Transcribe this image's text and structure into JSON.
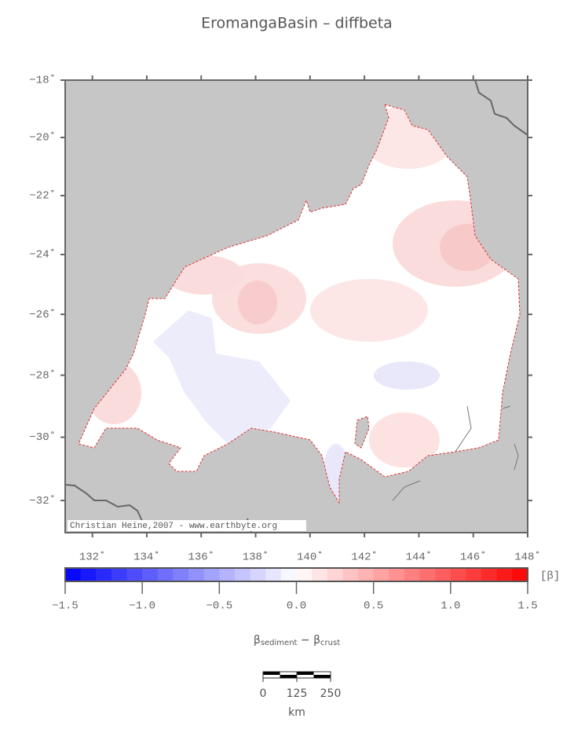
{
  "title": "EromangaBasin – diffbeta",
  "map": {
    "lon_lim": [
      131,
      148
    ],
    "lat_lim": [
      -33,
      -18
    ],
    "lat_ticks": [
      {
        "value": -18,
        "label": "−18˚"
      },
      {
        "value": -20,
        "label": "−20˚"
      },
      {
        "value": -22,
        "label": "−22˚"
      },
      {
        "value": -24,
        "label": "−24˚"
      },
      {
        "value": -26,
        "label": "−26˚"
      },
      {
        "value": -28,
        "label": "−28˚"
      },
      {
        "value": -30,
        "label": "−30˚"
      },
      {
        "value": -32,
        "label": "−32˚"
      }
    ],
    "lon_ticks": [
      {
        "value": 132,
        "label": "132˚"
      },
      {
        "value": 134,
        "label": "134˚"
      },
      {
        "value": 136,
        "label": "136˚"
      },
      {
        "value": 138,
        "label": "138˚"
      },
      {
        "value": 140,
        "label": "140˚"
      },
      {
        "value": 142,
        "label": "142˚"
      },
      {
        "value": 144,
        "label": "144˚"
      },
      {
        "value": 146,
        "label": "146˚"
      },
      {
        "value": 148,
        "label": "148˚"
      }
    ],
    "credit": "Christian Heine,2007 - www.earthbyte.org"
  },
  "colorbar": {
    "lim": [
      -1.5,
      1.5
    ],
    "unit": "[β]",
    "ticks": [
      {
        "value": -1.5,
        "label": "−1.5"
      },
      {
        "value": -1,
        "label": "−1.0"
      },
      {
        "value": -0.5,
        "label": "−0.5"
      },
      {
        "value": 0,
        "label": "0.0"
      },
      0.5,
      {
        "value": 1,
        "label": "1.0"
      },
      1.5
    ],
    "label": {
      "beta1": "β",
      "sub1": "sediment",
      "minus": " − ",
      "beta2": "β",
      "sub2": "crust"
    }
  },
  "scale_bar": {
    "ticks": [
      0,
      125,
      250
    ],
    "unit": "km"
  }
}
